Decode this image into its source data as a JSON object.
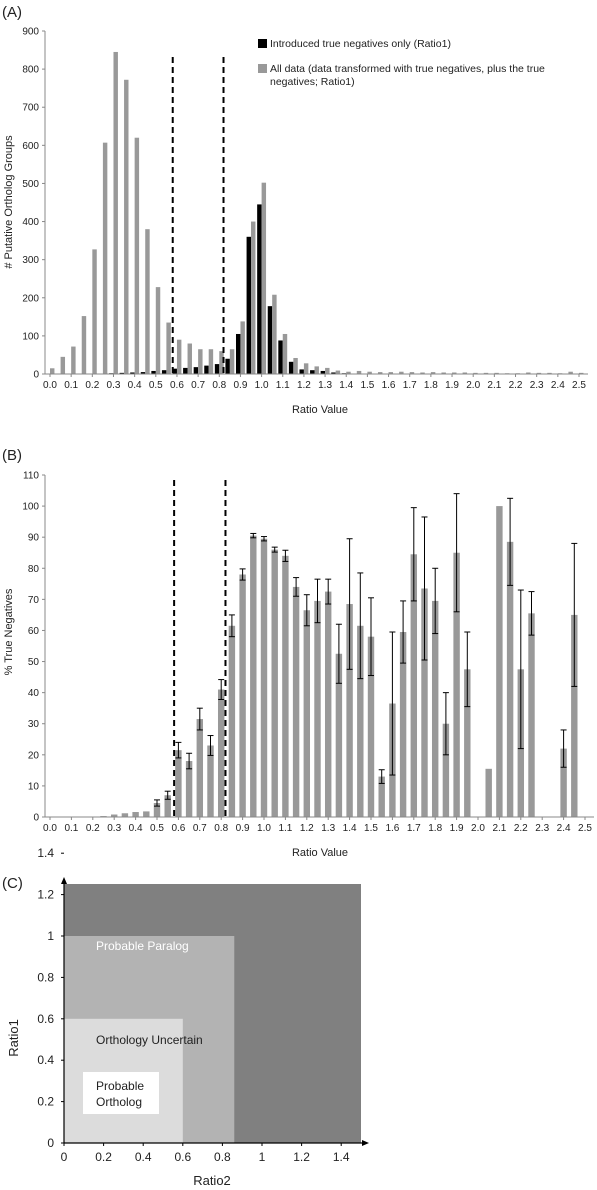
{
  "chart_data": [
    {
      "panel": "(A)",
      "type": "bar",
      "xlabel": "Ratio Value",
      "ylabel": "# Putative Ortholog Groups",
      "ylim": [
        0,
        900
      ],
      "yticks": [
        0,
        100,
        200,
        300,
        400,
        500,
        600,
        700,
        800,
        900
      ],
      "categories": [
        "0.0",
        "0.1",
        "0.2",
        "0.3",
        "0.4",
        "0.5",
        "0.6",
        "0.7",
        "0.8",
        "0.9",
        "1.0",
        "1.1",
        "1.2",
        "1.3",
        "1.4",
        "1.5",
        "1.6",
        "1.7",
        "1.8",
        "1.9",
        "2.0",
        "2.1",
        "2.2",
        "2.3",
        "2.4",
        "2.5"
      ],
      "x": [
        0.0,
        0.05,
        0.1,
        0.15,
        0.2,
        0.25,
        0.3,
        0.35,
        0.4,
        0.45,
        0.5,
        0.55,
        0.6,
        0.65,
        0.7,
        0.75,
        0.8,
        0.85,
        0.9,
        0.95,
        1.0,
        1.05,
        1.1,
        1.15,
        1.2,
        1.25,
        1.3,
        1.35,
        1.4,
        1.45,
        1.5,
        1.55,
        1.6,
        1.65,
        1.7,
        1.75,
        1.8,
        1.85,
        1.9,
        1.95,
        2.0,
        2.05,
        2.1,
        2.15,
        2.2,
        2.25,
        2.3,
        2.35,
        2.4,
        2.45,
        2.5
      ],
      "series": [
        {
          "name": "Introduced true negatives only (Ratio1)",
          "color": "#000000",
          "values": [
            0,
            0,
            0,
            0,
            0,
            1,
            2,
            3,
            4,
            5,
            8,
            10,
            14,
            16,
            18,
            22,
            26,
            40,
            105,
            360,
            445,
            178,
            88,
            32,
            12,
            10,
            8,
            4,
            2,
            1,
            1,
            0,
            0,
            0,
            0,
            0,
            0,
            0,
            0,
            0,
            0,
            0,
            0,
            0,
            0,
            0,
            0,
            0,
            0,
            0,
            0
          ]
        },
        {
          "name": "All data (data transformed with true negatives, plus the true negatives; Ratio1)",
          "color": "#999999",
          "values": [
            15,
            45,
            72,
            152,
            327,
            607,
            845,
            772,
            620,
            380,
            228,
            135,
            90,
            80,
            65,
            65,
            60,
            65,
            138,
            400,
            502,
            208,
            105,
            42,
            28,
            20,
            16,
            9,
            6,
            8,
            6,
            5,
            5,
            6,
            5,
            4,
            5,
            4,
            4,
            4,
            3,
            3,
            3,
            2,
            2,
            4,
            3,
            3,
            2,
            6,
            3
          ]
        }
      ],
      "dashed_lines_x": [
        0.58,
        0.82
      ],
      "grid": false,
      "legend_position": "top-right"
    },
    {
      "panel": "(B)",
      "type": "bar",
      "xlabel": "Ratio Value",
      "ylabel": "% True Negatives",
      "ylim": [
        0,
        110
      ],
      "yticks": [
        0,
        10,
        20,
        30,
        40,
        50,
        60,
        70,
        80,
        90,
        100,
        110
      ],
      "categories": [
        "0.0",
        "0.1",
        "0.2",
        "0.3",
        "0.4",
        "0.5",
        "0.6",
        "0.7",
        "0.8",
        "0.9",
        "1.0",
        "1.1",
        "1.2",
        "1.3",
        "1.4",
        "1.5",
        "1.6",
        "1.7",
        "1.8",
        "1.9",
        "2.0",
        "2.1",
        "2.2",
        "2.3",
        "2.4",
        "2.5"
      ],
      "x": [
        0.0,
        0.05,
        0.1,
        0.15,
        0.2,
        0.25,
        0.3,
        0.35,
        0.4,
        0.45,
        0.5,
        0.55,
        0.6,
        0.65,
        0.7,
        0.75,
        0.8,
        0.85,
        0.9,
        0.95,
        1.0,
        1.05,
        1.1,
        1.15,
        1.2,
        1.25,
        1.3,
        1.35,
        1.4,
        1.45,
        1.5,
        1.55,
        1.6,
        1.65,
        1.7,
        1.75,
        1.8,
        1.85,
        1.9,
        1.95,
        2.0,
        2.05,
        2.1,
        2.15,
        2.2,
        2.25,
        2.3,
        2.35,
        2.4,
        2.45,
        2.5
      ],
      "values": [
        0,
        0,
        0,
        0,
        0,
        0.3,
        0.8,
        1.2,
        1.6,
        1.8,
        4.5,
        7,
        21.5,
        18,
        31.5,
        23,
        41,
        61.5,
        78,
        90.5,
        89.5,
        86,
        84,
        74,
        66.5,
        69.5,
        72.5,
        52.5,
        68.5,
        61.5,
        58,
        13,
        36.5,
        59.5,
        84.5,
        73.5,
        69.5,
        30,
        85,
        47.5,
        0,
        15.5,
        100,
        88.5,
        47.5,
        65.5,
        0,
        0,
        22,
        65,
        0
      ],
      "errors": [
        0,
        0,
        0,
        0,
        0,
        0,
        0,
        0,
        0,
        0,
        1,
        1.3,
        2.5,
        2.5,
        3.5,
        3.2,
        3.2,
        3.5,
        1.8,
        0.7,
        0.7,
        0.8,
        1.8,
        3,
        5,
        7,
        4,
        9.5,
        21,
        17,
        12.5,
        2.2,
        23,
        10,
        15,
        23,
        10.5,
        10,
        19,
        12,
        0,
        0,
        0,
        14,
        25.5,
        7,
        0,
        0,
        6,
        23,
        0
      ],
      "dashed_lines_x": [
        0.58,
        0.82
      ],
      "grid": false
    },
    {
      "panel": "(C)",
      "type": "region",
      "xlabel": "Ratio2",
      "ylabel": "Ratio1",
      "xlim": [
        0,
        1.5
      ],
      "ylim": [
        0,
        1.5
      ],
      "xticks": [
        "0",
        "0.2",
        "0.4",
        "0.6",
        "0.8",
        "1",
        "1.2",
        "1.4"
      ],
      "yticks": [
        "0",
        "0.2",
        "0.4",
        "0.6",
        "0.8",
        "1",
        "1.2",
        "1.4"
      ],
      "regions": [
        {
          "label": "Probable  Paralog",
          "x_max": 1.5,
          "y_max": 1.5,
          "color": "#808080",
          "text_color": "#ffffff"
        },
        {
          "label": "Orthology Uncertain",
          "x_max": 0.86,
          "y_max": 1.0,
          "color": "#b3b3b3",
          "text_color": "#222222"
        },
        {
          "label_lines": [
            "Probable",
            "Ortholog"
          ],
          "x_max": 0.6,
          "y_max": 0.6,
          "color": "#dcdcdc",
          "text_color": "#222222"
        }
      ]
    }
  ]
}
